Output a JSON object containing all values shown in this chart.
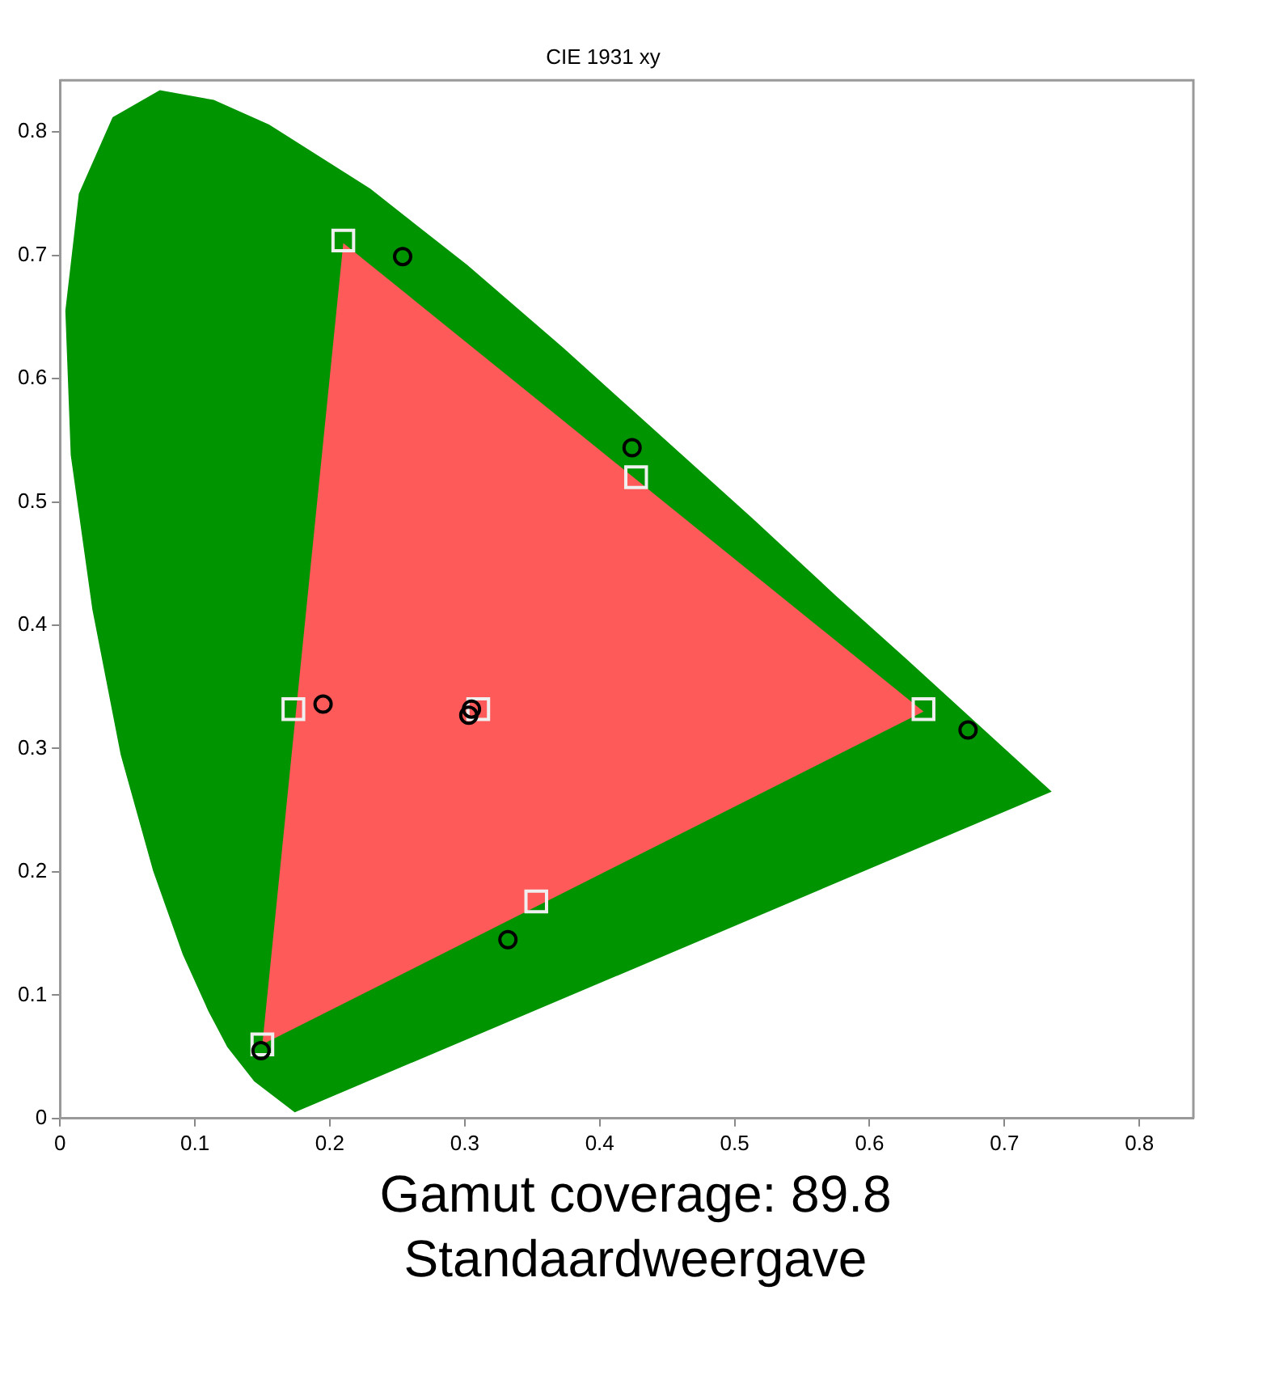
{
  "chart_data": {
    "type": "scatter",
    "title": "CIE 1931 xy",
    "annotations": [
      "Gamut coverage: 89.8",
      "Standaardweergave"
    ],
    "xlim": [
      0,
      0.84
    ],
    "ylim": [
      0,
      0.842
    ],
    "xticks": [
      0,
      0.1,
      0.2,
      0.3,
      0.4,
      0.5,
      0.6,
      0.7,
      0.8
    ],
    "yticks": [
      0,
      0.1,
      0.2,
      0.3,
      0.4,
      0.5,
      0.6,
      0.7,
      0.8
    ],
    "grid": false,
    "legend": false,
    "series": [
      {
        "type": "area",
        "color": "#009400",
        "x": [
          0.174,
          0.144,
          0.124,
          0.11,
          0.091,
          0.069,
          0.045,
          0.024,
          0.008,
          0.004,
          0.014,
          0.039,
          0.074,
          0.114,
          0.155,
          0.23,
          0.302,
          0.373,
          0.444,
          0.513,
          0.575,
          0.627,
          0.692,
          0.735,
          0.174
        ],
        "values": [
          0.005,
          0.03,
          0.058,
          0.087,
          0.133,
          0.201,
          0.295,
          0.413,
          0.538,
          0.655,
          0.75,
          0.812,
          0.834,
          0.826,
          0.806,
          0.754,
          0.692,
          0.625,
          0.555,
          0.487,
          0.424,
          0.373,
          0.308,
          0.265,
          0.005
        ]
      },
      {
        "type": "area",
        "color": "#ff5a5a",
        "x": [
          0.64,
          0.21,
          0.15,
          0.64
        ],
        "values": [
          0.33,
          0.71,
          0.06,
          0.33
        ]
      },
      {
        "marker": "square",
        "color": "#f0f0f0",
        "x": [
          0.21,
          0.427,
          0.64,
          0.15,
          0.173,
          0.353,
          0.31
        ],
        "values": [
          0.712,
          0.52,
          0.332,
          0.06,
          0.332,
          0.176,
          0.332
        ]
      },
      {
        "marker": "circle",
        "color": "#000000",
        "x": [
          0.254,
          0.424,
          0.673,
          0.149,
          0.195,
          0.332,
          0.305,
          0.303
        ],
        "values": [
          0.699,
          0.544,
          0.315,
          0.055,
          0.336,
          0.145,
          0.332,
          0.327
        ]
      }
    ]
  }
}
